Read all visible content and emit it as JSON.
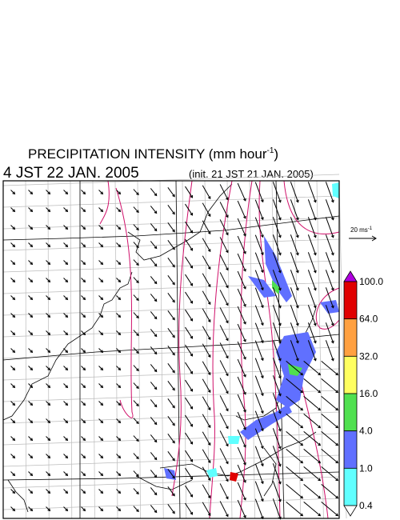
{
  "title": {
    "text": "PRECIPITATION INTENSITY (mm hour",
    "superscript": "-1",
    "close": ")"
  },
  "valid_time": "4 JST 22 JAN. 2005",
  "init_time": "(init. 21 JST 21 JAN. 2005)",
  "wind_scale": {
    "label": "20 ms",
    "superscript": "-1"
  },
  "colorbar": {
    "levels": [
      {
        "value": 100,
        "label": "100.0"
      },
      {
        "value": 64,
        "label": "64.0"
      },
      {
        "value": 32,
        "label": "32.0"
      },
      {
        "value": 16,
        "label": "16.0"
      },
      {
        "value": 4,
        "label": "4.0"
      },
      {
        "value": 1,
        "label": "1.0"
      },
      {
        "value": 0.4,
        "label": "0.4"
      }
    ],
    "colors": [
      "#b000e0",
      "#e00000",
      "#ffa040",
      "#ffff60",
      "#50e050",
      "#6070ff",
      "#60ffff",
      "#ffffff"
    ]
  }
}
